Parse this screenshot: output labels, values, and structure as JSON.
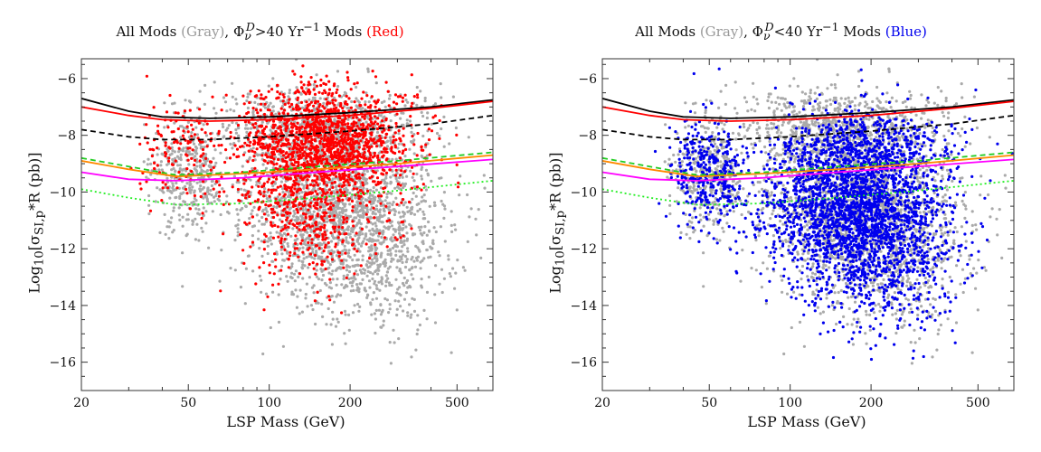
{
  "chart_data": [
    {
      "type": "scatter",
      "title_parts": {
        "prefix": "All Mods ",
        "gray_label": "(Gray)",
        "comma": ", ",
        "phi": "Φ",
        "phi_sub": "ν",
        "phi_sup": "D",
        "cond": ">40 Yr",
        "cond_sup": "−1",
        "mods": " Mods ",
        "hl_label": "(Red)"
      },
      "highlight_color": "#ff0000",
      "xlabel": "LSP Mass (GeV)",
      "ylabel_parts": {
        "log": "Log",
        "log_sub": "10",
        "open": "[σ",
        "sigma_sub": "SI,p",
        "rest": "*R (pb)]"
      },
      "x_scale": "log",
      "xlim": [
        20,
        680
      ],
      "ylim": [
        -17,
        -5.3
      ],
      "x_ticks": [
        20,
        50,
        100,
        200,
        500
      ],
      "y_ticks": [
        -6,
        -8,
        -10,
        -12,
        -14,
        -16
      ],
      "grid": false,
      "series": [
        {
          "color": "#aaaaaa",
          "mode": "scatter"
        },
        {
          "color": "#ff0000",
          "mode": "scatter"
        }
      ],
      "curves": [
        {
          "color": "#000000",
          "style": "solid",
          "x": [
            20,
            30,
            40,
            60,
            100,
            200,
            400,
            680
          ],
          "y": [
            -6.7,
            -7.15,
            -7.35,
            -7.4,
            -7.35,
            -7.2,
            -7.0,
            -6.75
          ]
        },
        {
          "color": "#ff0000",
          "style": "solid",
          "x": [
            20,
            30,
            40,
            60,
            100,
            200,
            400,
            680
          ],
          "y": [
            -7.0,
            -7.3,
            -7.45,
            -7.5,
            -7.45,
            -7.3,
            -7.05,
            -6.8
          ]
        },
        {
          "color": "#000000",
          "style": "dashed",
          "x": [
            20,
            30,
            40,
            60,
            100,
            200,
            400,
            680
          ],
          "y": [
            -7.8,
            -8.05,
            -8.15,
            -8.15,
            -8.05,
            -7.85,
            -7.6,
            -7.3
          ]
        },
        {
          "color": "#ff8800",
          "style": "solid",
          "x": [
            20,
            30,
            45,
            80,
            150,
            300,
            680
          ],
          "y": [
            -8.9,
            -9.2,
            -9.45,
            -9.35,
            -9.2,
            -9.0,
            -8.7
          ]
        },
        {
          "color": "#22cc22",
          "style": "dashed",
          "x": [
            20,
            30,
            45,
            80,
            150,
            300,
            680
          ],
          "y": [
            -8.8,
            -9.1,
            -9.4,
            -9.3,
            -9.1,
            -8.9,
            -8.6
          ]
        },
        {
          "color": "#ff00ff",
          "style": "solid",
          "x": [
            20,
            30,
            45,
            80,
            150,
            300,
            680
          ],
          "y": [
            -9.3,
            -9.55,
            -9.6,
            -9.5,
            -9.3,
            -9.1,
            -8.85
          ]
        },
        {
          "color": "#22ee22",
          "style": "dotted",
          "x": [
            20,
            30,
            45,
            80,
            150,
            300,
            680
          ],
          "y": [
            -9.9,
            -10.2,
            -10.45,
            -10.4,
            -10.2,
            -9.95,
            -9.6
          ]
        }
      ]
    },
    {
      "type": "scatter",
      "title_parts": {
        "prefix": "All Mods ",
        "gray_label": "(Gray)",
        "comma": ", ",
        "phi": "Φ",
        "phi_sub": "ν",
        "phi_sup": "D",
        "cond": "<40 Yr",
        "cond_sup": "−1",
        "mods": " Mods ",
        "hl_label": "(Blue)"
      },
      "highlight_color": "#0000ee",
      "xlabel": "LSP Mass (GeV)",
      "ylabel_parts": {
        "log": "Log",
        "log_sub": "10",
        "open": "[σ",
        "sigma_sub": "SI,p",
        "rest": "*R (pb)]"
      },
      "x_scale": "log",
      "xlim": [
        20,
        680
      ],
      "ylim": [
        -17,
        -5.3
      ],
      "x_ticks": [
        20,
        50,
        100,
        200,
        500
      ],
      "y_ticks": [
        -6,
        -8,
        -10,
        -12,
        -14,
        -16
      ],
      "grid": false,
      "series": [
        {
          "color": "#aaaaaa",
          "mode": "scatter"
        },
        {
          "color": "#0000ee",
          "mode": "scatter"
        }
      ],
      "curves": [
        {
          "color": "#000000",
          "style": "solid",
          "x": [
            20,
            30,
            40,
            60,
            100,
            200,
            400,
            680
          ],
          "y": [
            -6.7,
            -7.15,
            -7.35,
            -7.4,
            -7.35,
            -7.2,
            -7.0,
            -6.75
          ]
        },
        {
          "color": "#ff0000",
          "style": "solid",
          "x": [
            20,
            30,
            40,
            60,
            100,
            200,
            400,
            680
          ],
          "y": [
            -7.0,
            -7.3,
            -7.45,
            -7.5,
            -7.45,
            -7.3,
            -7.05,
            -6.8
          ]
        },
        {
          "color": "#000000",
          "style": "dashed",
          "x": [
            20,
            30,
            40,
            60,
            100,
            200,
            400,
            680
          ],
          "y": [
            -7.8,
            -8.05,
            -8.15,
            -8.15,
            -8.05,
            -7.85,
            -7.6,
            -7.3
          ]
        },
        {
          "color": "#ff8800",
          "style": "solid",
          "x": [
            20,
            30,
            45,
            80,
            150,
            300,
            680
          ],
          "y": [
            -8.9,
            -9.2,
            -9.45,
            -9.35,
            -9.2,
            -9.0,
            -8.7
          ]
        },
        {
          "color": "#22cc22",
          "style": "dashed",
          "x": [
            20,
            30,
            45,
            80,
            150,
            300,
            680
          ],
          "y": [
            -8.8,
            -9.1,
            -9.4,
            -9.3,
            -9.1,
            -8.9,
            -8.6
          ]
        },
        {
          "color": "#ff00ff",
          "style": "solid",
          "x": [
            20,
            30,
            45,
            80,
            150,
            300,
            680
          ],
          "y": [
            -9.3,
            -9.55,
            -9.6,
            -9.5,
            -9.3,
            -9.1,
            -8.85
          ]
        },
        {
          "color": "#22ee22",
          "style": "dotted",
          "x": [
            20,
            30,
            45,
            80,
            150,
            300,
            680
          ],
          "y": [
            -9.9,
            -10.2,
            -10.45,
            -10.4,
            -10.2,
            -9.95,
            -9.6
          ]
        }
      ]
    }
  ]
}
